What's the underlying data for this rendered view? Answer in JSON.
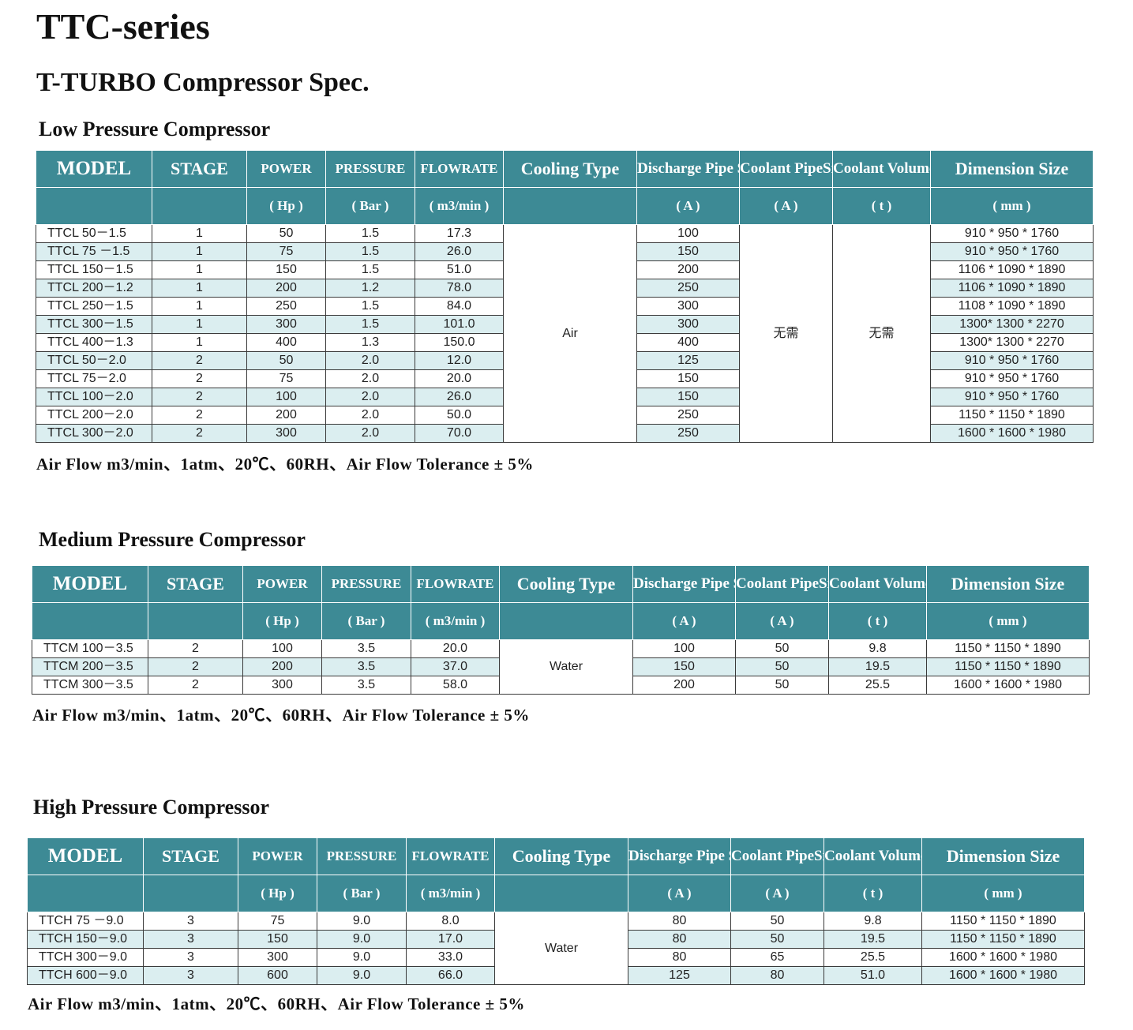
{
  "title": "TTC-series",
  "subtitle": "T-TURBO Compressor Spec.",
  "headers": {
    "model": "MODEL",
    "stage": "STAGE",
    "power": "POWER",
    "pressure": "PRESSURE",
    "flowrate": "FLOWRATE",
    "cooling_type": "Cooling Type",
    "discharge": "Discharge Pipe Size",
    "coolant_pipe": "Coolant PipeSize",
    "coolant_volume": "Coolant Volume",
    "dimension": "Dimension  Size",
    "unit_power": "( Hp )",
    "unit_pressure": "( Bar )",
    "unit_flow": "( m3/min )",
    "unit_discharge": "( A )",
    "unit_coolant_pipe": "( A )",
    "unit_coolant_volume": "( t )",
    "unit_dimension": "( mm )"
  },
  "note": "Air Flow m3/min、1atm、20℃、60RH、Air Flow Tolerance ± 5%",
  "low": {
    "title": "Low Pressure Compressor",
    "cooling": "Air",
    "coolant_pipe": "无需",
    "coolant_volume": "无需",
    "rows": [
      {
        "model": "TTCL   50－1.5",
        "stage": "1",
        "power": "50",
        "pressure": "1.5",
        "flow": "17.3",
        "discharge": "100",
        "dim": "910 *    950 *  1760"
      },
      {
        "model": "TTCL   75 －1.5",
        "stage": "1",
        "power": "75",
        "pressure": "1.5",
        "flow": "26.0",
        "discharge": "150",
        "dim": "910 *    950 *  1760"
      },
      {
        "model": "TTCL 150－1.5",
        "stage": "1",
        "power": "150",
        "pressure": "1.5",
        "flow": "51.0",
        "discharge": "200",
        "dim": "1106 * 1090 *  1890"
      },
      {
        "model": "TTCL 200－1.2",
        "stage": "1",
        "power": "200",
        "pressure": "1.2",
        "flow": "78.0",
        "discharge": "250",
        "dim": "1106 * 1090 *  1890"
      },
      {
        "model": "TTCL 250－1.5",
        "stage": "1",
        "power": "250",
        "pressure": "1.5",
        "flow": "84.0",
        "discharge": "300",
        "dim": "1108 * 1090 *  1890"
      },
      {
        "model": "TTCL 300－1.5",
        "stage": "1",
        "power": "300",
        "pressure": "1.5",
        "flow": "101.0",
        "discharge": "300",
        "dim": "1300*  1300 *  2270"
      },
      {
        "model": "TTCL 400－1.3",
        "stage": "1",
        "power": "400",
        "pressure": "1.3",
        "flow": "150.0",
        "discharge": "400",
        "dim": "1300*  1300 *  2270"
      },
      {
        "model": "TTCL   50－2.0",
        "stage": "2",
        "power": "50",
        "pressure": "2.0",
        "flow": "12.0",
        "discharge": "125",
        "dim": "910 *    950 *  1760"
      },
      {
        "model": "TTCL   75－2.0",
        "stage": "2",
        "power": "75",
        "pressure": "2.0",
        "flow": "20.0",
        "discharge": "150",
        "dim": "910 *    950 *  1760"
      },
      {
        "model": "TTCL 100－2.0",
        "stage": "2",
        "power": "100",
        "pressure": "2.0",
        "flow": "26.0",
        "discharge": "150",
        "dim": "910 *    950 *  1760"
      },
      {
        "model": "TTCL 200－2.0",
        "stage": "2",
        "power": "200",
        "pressure": "2.0",
        "flow": "50.0",
        "discharge": "250",
        "dim": "1150 *  1150 *  1890"
      },
      {
        "model": "TTCL 300－2.0",
        "stage": "2",
        "power": "300",
        "pressure": "2.0",
        "flow": "70.0",
        "discharge": "250",
        "dim": "1600 *  1600 *  1980"
      }
    ]
  },
  "medium": {
    "title": "Medium Pressure Compressor",
    "cooling": "Water",
    "rows": [
      {
        "model": "TTCM 100－3.5",
        "stage": "2",
        "power": "100",
        "pressure": "3.5",
        "flow": "20.0",
        "discharge": "100",
        "coolant_pipe": "50",
        "coolant_volume": "9.8",
        "dim": "1150 * 1150 * 1890"
      },
      {
        "model": "TTCM 200－3.5",
        "stage": "2",
        "power": "200",
        "pressure": "3.5",
        "flow": "37.0",
        "discharge": "150",
        "coolant_pipe": "50",
        "coolant_volume": "19.5",
        "dim": "1150 * 1150 * 1890"
      },
      {
        "model": "TTCM 300－3.5",
        "stage": "2",
        "power": "300",
        "pressure": "3.5",
        "flow": "58.0",
        "discharge": "200",
        "coolant_pipe": "50",
        "coolant_volume": "25.5",
        "dim": "1600 * 1600 * 1980"
      }
    ]
  },
  "high": {
    "title": "High Pressure Compressor",
    "cooling": "Water",
    "rows": [
      {
        "model": "TTCH 75 －9.0",
        "stage": "3",
        "power": "75",
        "pressure": "9.0",
        "flow": "8.0",
        "discharge": "80",
        "coolant_pipe": "50",
        "coolant_volume": "9.8",
        "dim": "1150 * 1150 * 1890"
      },
      {
        "model": "TTCH 150－9.0",
        "stage": "3",
        "power": "150",
        "pressure": "9.0",
        "flow": "17.0",
        "discharge": "80",
        "coolant_pipe": "50",
        "coolant_volume": "19.5",
        "dim": "1150 * 1150 * 1890"
      },
      {
        "model": "TTCH 300－9.0",
        "stage": "3",
        "power": "300",
        "pressure": "9.0",
        "flow": "33.0",
        "discharge": "80",
        "coolant_pipe": "65",
        "coolant_volume": "25.5",
        "dim": "1600 * 1600 * 1980"
      },
      {
        "model": "TTCH 600－9.0",
        "stage": "3",
        "power": "600",
        "pressure": "9.0",
        "flow": "66.0",
        "discharge": "125",
        "coolant_pipe": "80",
        "coolant_volume": "51.0",
        "dim": "1600 * 1600 * 1980"
      }
    ]
  }
}
